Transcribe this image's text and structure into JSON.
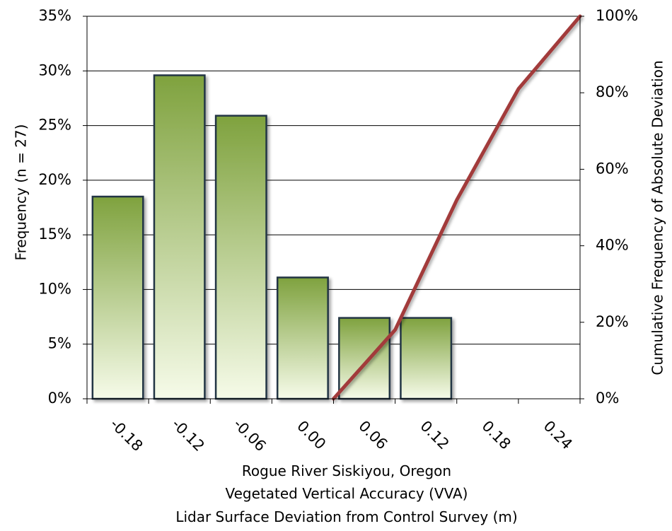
{
  "chart_data": {
    "type": "bar",
    "x_tick_labels": [
      "-0.18",
      "-0.12",
      "-0.06",
      "0.00",
      "0.06",
      "0.12",
      "0.18",
      "0.24"
    ],
    "bar_values": [
      18.5,
      29.6,
      25.9,
      11.1,
      7.4,
      7.4
    ],
    "ylabel_left": "Frequency (n = 27)",
    "ylabel_right": "Cumulative Frequency of Absolute Deviation",
    "xlabel_lines": [
      "Rogue River Siskiyou, Oregon",
      "Vegetated Vertical Accuracy (VVA)",
      "Lidar Surface Deviation from Control Survey (m)"
    ],
    "y_left_ticks": [
      "0%",
      "5%",
      "10%",
      "15%",
      "20%",
      "25%",
      "30%",
      "35%"
    ],
    "y_left_range": [
      0,
      35
    ],
    "y_right_ticks": [
      "0%",
      "20%",
      "40%",
      "60%",
      "80%",
      "100%"
    ],
    "y_right_range": [
      0,
      100
    ],
    "cumulative_line": {
      "x": [
        0.0,
        0.06,
        0.12,
        0.18,
        0.24
      ],
      "y": [
        0,
        18,
        52,
        81,
        100
      ]
    },
    "grid": true,
    "colors": {
      "bar_top": "#7fa23e",
      "bar_bottom": "#f6fbe9",
      "bar_stroke": "#243544",
      "line": "#a23a3a",
      "grid": "#000000"
    }
  }
}
